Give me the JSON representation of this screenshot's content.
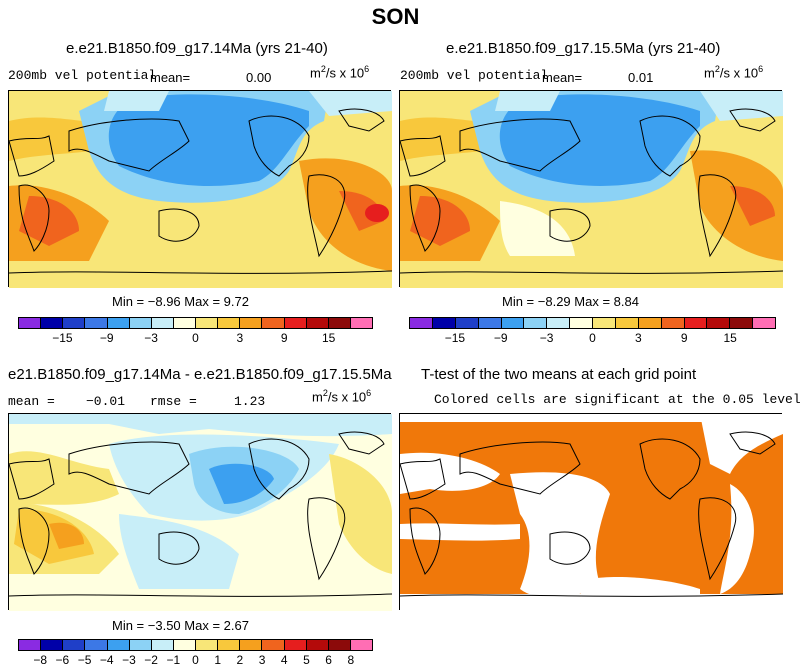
{
  "title": "SON",
  "panels": [
    {
      "title": "e.e21.B1850.f09_g17.14Ma (yrs 21-40)",
      "left_label": "200mb vel potential",
      "mean_label": "mean=",
      "mean_value": "0.00",
      "units_base": "m",
      "units_mid": "/s x 10",
      "units_exp2": "2",
      "units_exp6": "6",
      "stats": "Min = −8.96 Max = 9.72"
    },
    {
      "title": "e.e21.B1850.f09_g17.15.5Ma (yrs 21-40)",
      "left_label": "200mb vel potential",
      "mean_label": "mean=",
      "mean_value": "0.01",
      "units_base": "m",
      "units_mid": "/s x 10",
      "units_exp2": "2",
      "units_exp6": "6",
      "stats": "Min = −8.29 Max = 8.84"
    },
    {
      "title": "e21.B1850.f09_g17.14Ma - e.e21.B1850.f09_g17.15.5Ma",
      "mean_label": "mean =",
      "mean_value": "−0.01",
      "rmse_label": "rmse =",
      "rmse_value": "1.23",
      "units_base": "m",
      "units_mid": "/s x 10",
      "units_exp2": "2",
      "units_exp6": "6",
      "stats": "Min = −3.50 Max = 2.67"
    },
    {
      "title": "T-test of the two means at each grid point",
      "subtitle": "Colored cells are significant at the 0.05 level"
    }
  ],
  "colorbar_top": {
    "colors": [
      "#8a2be2",
      "#0000a8",
      "#1f3fc8",
      "#3c78e6",
      "#3ca0f0",
      "#8cd2f5",
      "#c8eef8",
      "#ffffe0",
      "#f8e678",
      "#f8c83c",
      "#f5a01e",
      "#f0641e",
      "#e61e1e",
      "#b40a0a",
      "#8c0a0a",
      "#ff6eb4"
    ],
    "labels": [
      "−15",
      "−9",
      "−3",
      "0",
      "3",
      "9",
      "15"
    ]
  },
  "colorbar_bottom": {
    "colors": [
      "#8a2be2",
      "#0000a8",
      "#1f3fc8",
      "#3c78e6",
      "#3ca0f0",
      "#8cd2f5",
      "#c8eef8",
      "#ffffe0",
      "#f8e678",
      "#f8c83c",
      "#f5a01e",
      "#f0641e",
      "#e61e1e",
      "#b40a0a",
      "#8c0a0a",
      "#ff6eb4"
    ],
    "labels": [
      "−8",
      "−6",
      "−5",
      "−4",
      "−3",
      "−2",
      "−1",
      "0",
      "1",
      "2",
      "3",
      "4",
      "5",
      "6",
      "8"
    ]
  },
  "colors": {
    "significance_fill": "#f0780a"
  }
}
